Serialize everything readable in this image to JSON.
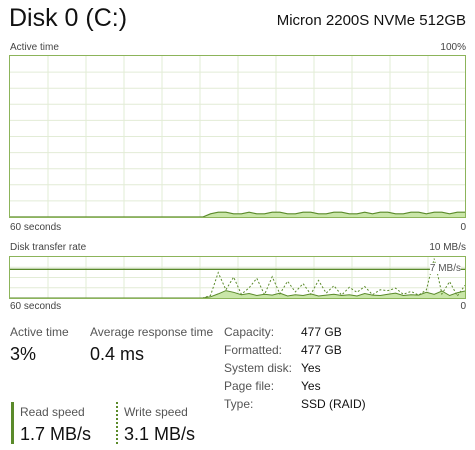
{
  "header": {
    "title": "Disk 0 (C:)",
    "model": "Micron 2200S NVMe 512GB"
  },
  "active_time_chart": {
    "label": "Active time",
    "max_label": "100%",
    "left_label": "60 seconds",
    "right_label": "0",
    "ylim": [
      0,
      100
    ],
    "values": [
      0,
      0,
      0,
      0,
      0,
      0,
      0,
      0,
      0,
      0,
      0,
      0,
      0,
      0,
      0,
      0,
      0,
      0,
      0,
      0,
      0,
      0,
      0,
      0,
      0,
      0,
      2,
      3,
      3,
      2,
      2,
      3,
      2,
      2,
      3,
      3,
      2,
      2,
      3,
      3,
      2,
      2,
      3,
      3,
      2,
      2,
      3,
      2,
      3,
      3,
      2,
      2,
      3,
      3,
      2,
      3,
      3,
      2,
      3,
      3
    ]
  },
  "transfer_chart": {
    "label": "Disk transfer rate",
    "max_label": "10 MB/s",
    "ref_label": "7 MB/s",
    "ref_value": 7,
    "left_label": "60 seconds",
    "right_label": "0",
    "ylim": [
      0,
      10
    ],
    "read_values": [
      0,
      0,
      0,
      0,
      0,
      0,
      0,
      0,
      0,
      0,
      0,
      0,
      0,
      0,
      0,
      0,
      0,
      0,
      0,
      0,
      0,
      0,
      0,
      0,
      0,
      0,
      0.3,
      1.0,
      1.8,
      1.4,
      0.8,
      1.1,
      0.6,
      0.9,
      0.7,
      1.2,
      0.5,
      0.8,
      0.6,
      1.0,
      0.5,
      0.7,
      0.9,
      0.6,
      0.8,
      0.5,
      1.1,
      0.7,
      0.6,
      0.9,
      1.2,
      0.6,
      0.8,
      0.7,
      1.4,
      0.9,
      1.7,
      0.6,
      1.3,
      1.7
    ],
    "write_values": [
      0,
      0,
      0,
      0,
      0,
      0,
      0,
      0,
      0,
      0,
      0,
      0,
      0,
      0,
      0,
      0,
      0,
      0,
      0,
      0,
      0,
      0,
      0,
      0,
      0,
      0,
      0.6,
      6.2,
      2.0,
      5.1,
      0.9,
      2.5,
      4.8,
      0.8,
      5.2,
      1.0,
      4.1,
      1.5,
      3.5,
      0.9,
      4.3,
      1.2,
      3.0,
      0.7,
      2.6,
      1.4,
      2.8,
      0.8,
      2.0,
      1.8,
      2.4,
      0.9,
      1.6,
      0.7,
      2.0,
      9.6,
      1.0,
      4.0,
      0.5,
      3.1
    ]
  },
  "stats": {
    "active_time": {
      "label": "Active time",
      "value": "3%"
    },
    "avg_response": {
      "label": "Average response time",
      "value": "0.4 ms"
    },
    "read_speed": {
      "label": "Read speed",
      "value": "1.7 MB/s"
    },
    "write_speed": {
      "label": "Write speed",
      "value": "3.1 MB/s"
    }
  },
  "properties": [
    {
      "label": "Capacity:",
      "value": "477 GB"
    },
    {
      "label": "Formatted:",
      "value": "477 GB"
    },
    {
      "label": "System disk:",
      "value": "Yes"
    },
    {
      "label": "Page file:",
      "value": "Yes"
    },
    {
      "label": "Type:",
      "value": "SSD (RAID)"
    }
  ],
  "colors": {
    "border": "#8cb45a",
    "fill": "#c9e6a8",
    "line": "#5a8a2a",
    "grid": "#e2ecd6"
  }
}
